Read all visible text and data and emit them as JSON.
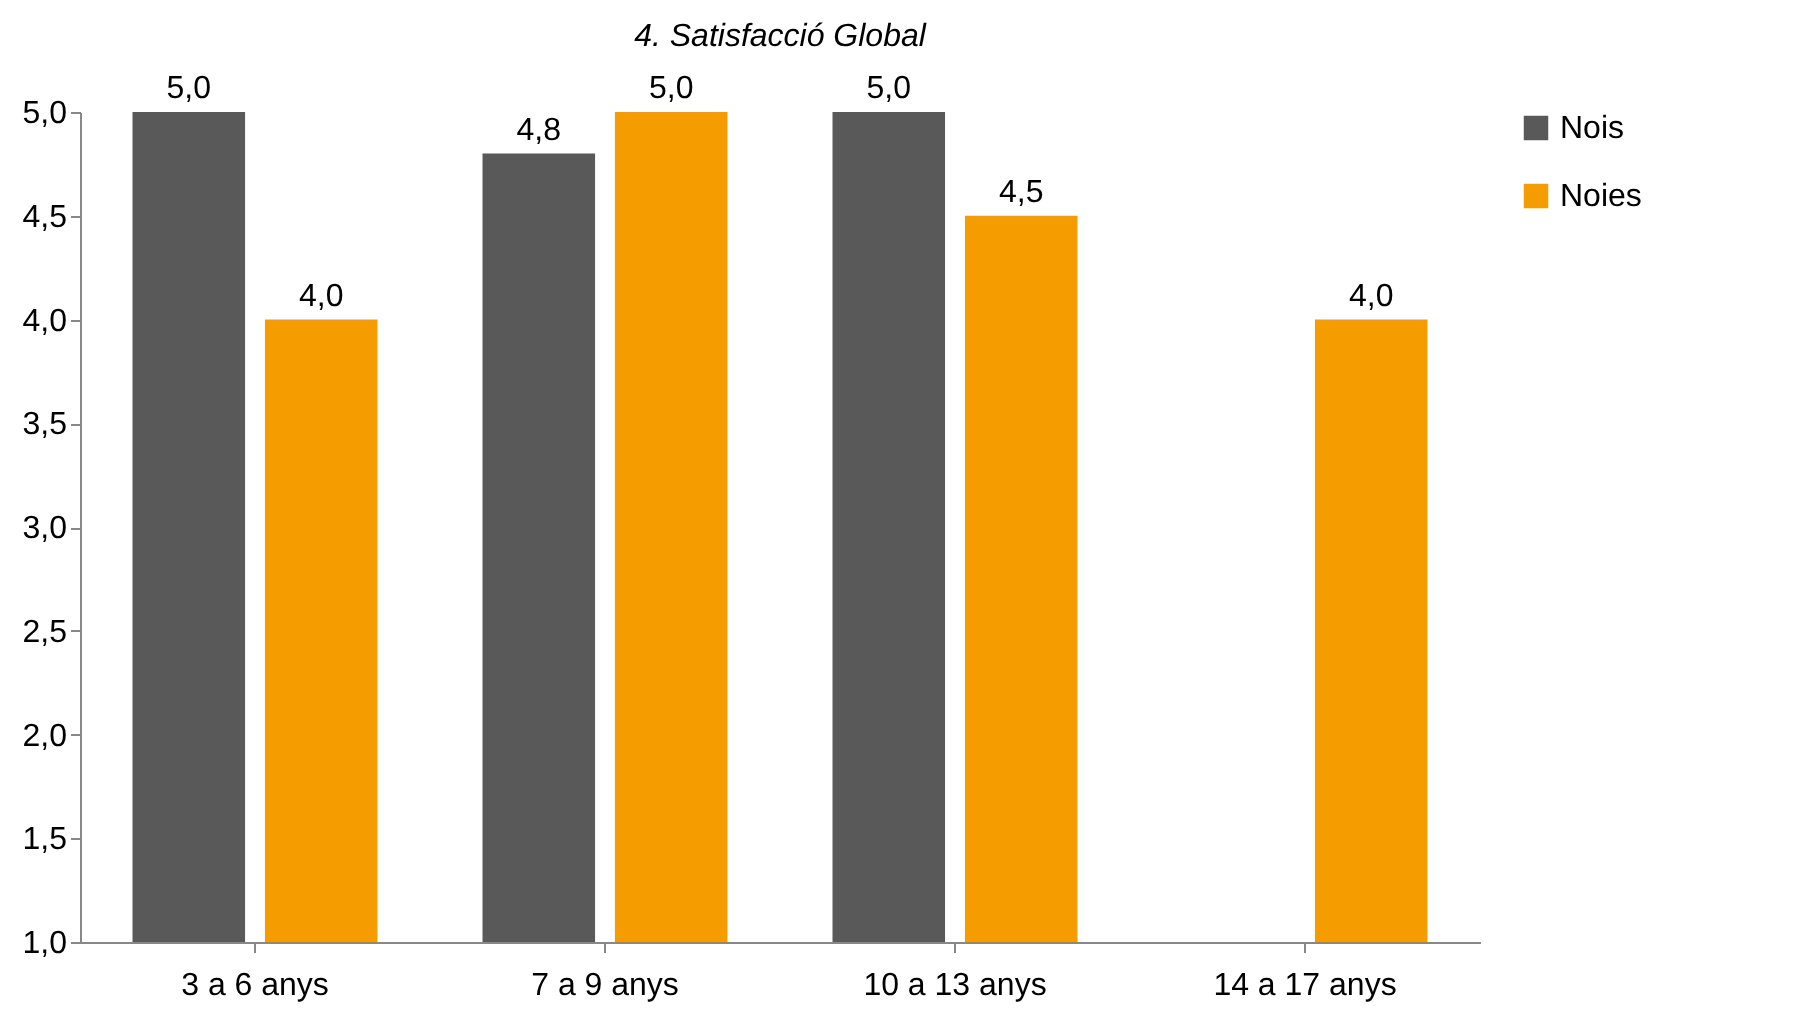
{
  "chart_data": {
    "type": "bar",
    "title": "4. Satisfacció Global",
    "categories": [
      "3 a 6 anys",
      "7 a 9 anys",
      "10 a 13 anys",
      "14 a 17 anys"
    ],
    "series": [
      {
        "name": "Nois",
        "color": "#595959",
        "values": [
          5.0,
          4.8,
          5.0,
          null
        ],
        "value_labels": [
          "5,0",
          "4,8",
          "5,0",
          null
        ]
      },
      {
        "name": "Noies",
        "color": "#f59d00",
        "values": [
          4.0,
          5.0,
          4.5,
          4.0
        ],
        "value_labels": [
          "4,0",
          "5,0",
          "4,5",
          "4,0"
        ]
      }
    ],
    "ylim": [
      1,
      5
    ],
    "yticks": [
      {
        "value": 1,
        "label": "1,0"
      },
      {
        "value": 1.5,
        "label": "1,5"
      },
      {
        "value": 2,
        "label": "2,0"
      },
      {
        "value": 2.5,
        "label": "2,5"
      },
      {
        "value": 3,
        "label": "3,0"
      },
      {
        "value": 3.5,
        "label": "3,5"
      },
      {
        "value": 4,
        "label": "4,0"
      },
      {
        "value": 4.5,
        "label": "4,5"
      },
      {
        "value": 5,
        "label": "5,0"
      }
    ],
    "grid": false,
    "legend": "right"
  }
}
